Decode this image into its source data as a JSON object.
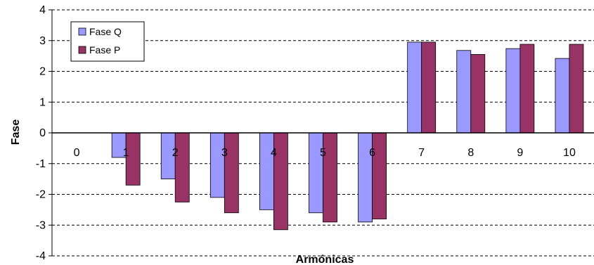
{
  "chart_data": {
    "type": "bar",
    "title": "",
    "xlabel": "Armónicas",
    "ylabel": "Fase",
    "ylim": [
      -4,
      4
    ],
    "yticks": [
      "4",
      "3",
      "2",
      "1",
      "0",
      "-1",
      "-2",
      "-3",
      "-4"
    ],
    "categories": [
      "0",
      "1",
      "2",
      "3",
      "4",
      "5",
      "6",
      "7",
      "8",
      "9",
      "10"
    ],
    "series": [
      {
        "name": "Fase Q",
        "color": "#9999ff",
        "values": [
          0,
          -0.8,
          -1.5,
          -2.1,
          -2.5,
          -2.6,
          -2.9,
          2.95,
          2.68,
          2.74,
          2.42
        ]
      },
      {
        "name": "Fase P",
        "color": "#993366",
        "values": [
          0,
          -1.7,
          -2.25,
          -2.6,
          -3.15,
          -2.9,
          -2.8,
          2.95,
          2.55,
          2.88,
          2.88
        ]
      }
    ],
    "grid": true,
    "legend": "top-left"
  }
}
